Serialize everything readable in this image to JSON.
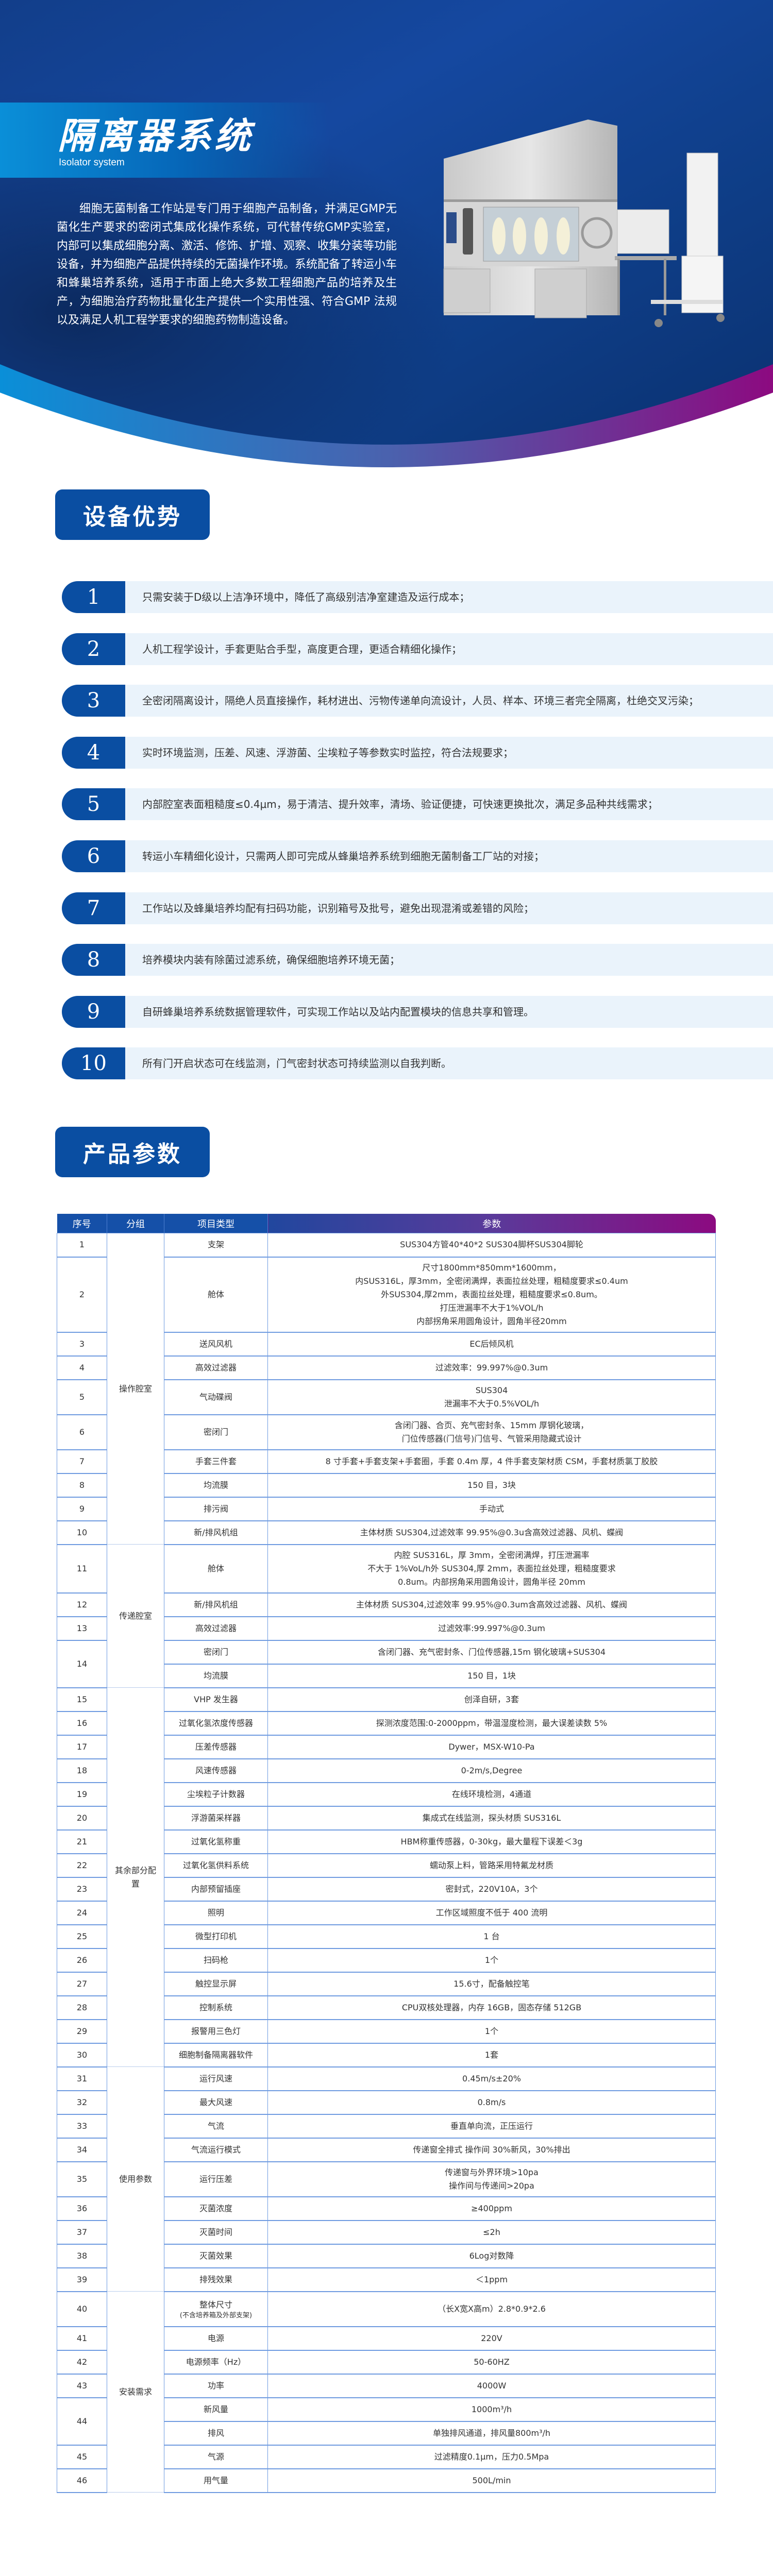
{
  "banner": {
    "title": "隔离器系统",
    "subtitle": "Isolator system",
    "intro": "细胞无菌制备工作站是专门用于细胞产品制备，并满足GMP无菌化生产要求的密闭式集成化操作系统，可代替传统GMP实验室，内部可以集成细胞分离、激活、修饰、扩增、观察、收集分装等功能设备，并为细胞产品提供持续的无菌操作环境。系统配备了转运小车和蜂巢培养系统，适用于市面上绝大多数工程细胞产品的培养及生产，为细胞治疗药物批量化生产提供一个实用性强、符合GMP 法规以及满足人机工程学要求的细胞药物制造设备。",
    "colors": {
      "band_start": "#0a8fd8",
      "band_end": "#8c0a80",
      "background": "#1547a0"
    }
  },
  "advantages": {
    "title": "设备优势",
    "items": [
      {
        "no": "1",
        "text": "只需安装于D级以上洁净环境中，降低了高级别洁净室建造及运行成本；"
      },
      {
        "no": "2",
        "text": "人机工程学设计，手套更贴合手型，高度更合理，更适合精细化操作；"
      },
      {
        "no": "3",
        "text": "全密闭隔离设计，隔绝人员直接操作，耗材进出、污物传递单向流设计，人员、样本、环境三者完全隔离，杜绝交叉污染；"
      },
      {
        "no": "4",
        "text": "实时环境监测，压差、风速、浮游菌、尘埃粒子等参数实时监控，符合法规要求；"
      },
      {
        "no": "5",
        "text": "内部腔室表面粗糙度≤0.4μm，易于清洁、提升效率，清场、验证便捷，可快速更换批次，满足多品种共线需求；"
      },
      {
        "no": "6",
        "text": "转运小车精细化设计，只需两人即可完成从蜂巢培养系统到细胞无菌制备工厂站的对接；"
      },
      {
        "no": "7",
        "text": "工作站以及蜂巢培养均配有扫码功能，识别箱号及批号，避免出现混淆或差错的风险；"
      },
      {
        "no": "8",
        "text": "培养模块内装有除菌过滤系统，确保细胞培养环境无菌；"
      },
      {
        "no": "9",
        "text": "自研蜂巢培养系统数据管理软件，可实现工作站以及站内配置模块的信息共享和管理。"
      },
      {
        "no": "10",
        "text": "所有门开启状态可在线监测，门气密封状态可持续监测以自我判断。"
      }
    ]
  },
  "params": {
    "title": "产品参数",
    "headers": [
      "序号",
      "分组",
      "项目类型",
      "参数"
    ],
    "groups": [
      {
        "name": "操作腔室",
        "rows": [
          {
            "no": "1",
            "items": [
              {
                "type": [
                  "支架"
                ],
                "value": [
                  "SUS304方管40*40*2  SUS304脚杯SUS304脚轮"
                ]
              }
            ]
          },
          {
            "no": "2",
            "items": [
              {
                "type": [
                  "舱体"
                ],
                "value": [
                  "尺寸1800mm*850mm*1600mm，",
                  "内SUS316L，厚3mm，全密闭满焊，表面拉丝处理，粗糙度要求≤0.4um",
                  "外SUS304,厚2mm，表面拉丝处理，粗糙度要求≤0.8um。",
                  "打压泄漏率不大于1%VOL/h",
                  "内部拐角采用圆角设计，圆角半径20mm"
                ]
              }
            ]
          },
          {
            "no": "3",
            "items": [
              {
                "type": [
                  "送风风机"
                ],
                "value": [
                  "EC后倾风机"
                ]
              }
            ]
          },
          {
            "no": "4",
            "items": [
              {
                "type": [
                  "高效过滤器"
                ],
                "value": [
                  "过滤效率：99.997%@0.3um"
                ]
              }
            ]
          },
          {
            "no": "5",
            "items": [
              {
                "type": [
                  "气动碟阀"
                ],
                "value": [
                  "SUS304",
                  "泄漏率不大于0.5%VOL/h"
                ]
              }
            ]
          },
          {
            "no": "6",
            "items": [
              {
                "type": [
                  "密闭门"
                ],
                "value": [
                  "含闭门器、合页、充气密封条、15mm 厚钢化玻璃，",
                  "门位传感器(门信号)门信号、气管采用隐藏式设计"
                ]
              }
            ]
          },
          {
            "no": "7",
            "items": [
              {
                "type": [
                  "手套三件套"
                ],
                "value": [
                  "8 寸手套+手套支架+手套圈，手套 0.4m 厚，4 件手套支架材质 CSM，手套材质氯丁胶胶"
                ]
              }
            ]
          },
          {
            "no": "8",
            "items": [
              {
                "type": [
                  "均流膜"
                ],
                "value": [
                  "150 目，3块"
                ]
              }
            ]
          },
          {
            "no": "9",
            "items": [
              {
                "type": [
                  "排污阀"
                ],
                "value": [
                  "手动式"
                ]
              }
            ]
          },
          {
            "no": "10",
            "items": [
              {
                "type": [
                  "新/排风机组"
                ],
                "value": [
                  "主体材质 SUS304,过滤效率 99.95%@0.3u含高效过滤器、风机、蝶阀"
                ]
              }
            ]
          }
        ]
      },
      {
        "name": "传递腔室",
        "rows": [
          {
            "no": "11",
            "items": [
              {
                "type": [
                  "舱体"
                ],
                "value": [
                  "内腔 SUS316L，厚 3mm，全密闭满焊，打压泄漏率",
                  "不大于 1%VoL/h外 SUS304,厚 2mm，表面拉丝处理，粗糙度要求",
                  "0.8um。内部拐角采用圆角设计，圆角半径 20mm"
                ]
              }
            ]
          },
          {
            "no": "12",
            "items": [
              {
                "type": [
                  "新/排风机组"
                ],
                "value": [
                  "主体材质 SUS304,过滤效率 99.95%@0.3um含高效过滤器、风机、蝶阀"
                ]
              }
            ]
          },
          {
            "no": "13",
            "items": [
              {
                "type": [
                  "高效过滤器"
                ],
                "value": [
                  "过滤效率:99.997%@0.3um"
                ]
              }
            ]
          },
          {
            "no": "14",
            "items": [
              {
                "type": [
                  "密闭门"
                ],
                "value": [
                  "含闭门器、充气密封条、门位传感器,15m 钢化玻璃+SUS304"
                ]
              },
              {
                "type": [
                  "均流膜"
                ],
                "value": [
                  "150 目，1块"
                ]
              }
            ]
          }
        ]
      },
      {
        "name": "其余部分配置",
        "rows": [
          {
            "no": "15",
            "items": [
              {
                "type": [
                  "VHP 发生器"
                ],
                "value": [
                  "创泽自研，3套"
                ]
              }
            ]
          },
          {
            "no": "16",
            "items": [
              {
                "type": [
                  "过氧化氢浓度传感器"
                ],
                "value": [
                  "探测浓度范围:0-2000ppm，带温湿度检测，最大误差读数 5%"
                ]
              }
            ]
          },
          {
            "no": "17",
            "items": [
              {
                "type": [
                  "压差传感器"
                ],
                "value": [
                  "Dywer，MSX-W10-Pa"
                ]
              }
            ]
          },
          {
            "no": "18",
            "items": [
              {
                "type": [
                  "风速传感器"
                ],
                "value": [
                  "0-2m/s,Degree"
                ]
              }
            ]
          },
          {
            "no": "19",
            "items": [
              {
                "type": [
                  "尘埃粒子计数器"
                ],
                "value": [
                  "在线环境检测，4通道"
                ]
              }
            ]
          },
          {
            "no": "20",
            "items": [
              {
                "type": [
                  "浮游菌采样器"
                ],
                "value": [
                  "集成式在线监测，探头材质 SUS316L"
                ]
              }
            ]
          },
          {
            "no": "21",
            "items": [
              {
                "type": [
                  "过氧化氢称重"
                ],
                "value": [
                  "HBM称重传感器，0-30kg，最大量程下误差＜3g"
                ]
              }
            ]
          },
          {
            "no": "22",
            "items": [
              {
                "type": [
                  "过氧化氢供料系统"
                ],
                "value": [
                  "蠕动泵上料，管路采用特氟龙材质"
                ]
              }
            ]
          },
          {
            "no": "23",
            "items": [
              {
                "type": [
                  "内部预留插座"
                ],
                "value": [
                  "密封式，220V10A，3个"
                ]
              }
            ]
          },
          {
            "no": "24",
            "items": [
              {
                "type": [
                  "照明"
                ],
                "value": [
                  "工作区域照度不低于 400 流明"
                ]
              }
            ]
          },
          {
            "no": "25",
            "items": [
              {
                "type": [
                  "微型打印机"
                ],
                "value": [
                  "1 台"
                ]
              }
            ]
          },
          {
            "no": "26",
            "items": [
              {
                "type": [
                  "扫码枪"
                ],
                "value": [
                  "1个"
                ]
              }
            ]
          },
          {
            "no": "27",
            "items": [
              {
                "type": [
                  "触控显示屏"
                ],
                "value": [
                  "15.6寸，配备触控笔"
                ]
              }
            ]
          },
          {
            "no": "28",
            "items": [
              {
                "type": [
                  "控制系统"
                ],
                "value": [
                  "CPU双核处理器，内存 16GB，固态存储 512GB"
                ]
              }
            ]
          },
          {
            "no": "29",
            "items": [
              {
                "type": [
                  "报警用三色灯"
                ],
                "value": [
                  "1个"
                ]
              }
            ]
          },
          {
            "no": "30",
            "items": [
              {
                "type": [
                  "细胞制备隔离器软件"
                ],
                "value": [
                  "1套"
                ]
              }
            ]
          }
        ]
      },
      {
        "name": "使用参数",
        "rows": [
          {
            "no": "31",
            "items": [
              {
                "type": [
                  "运行风速"
                ],
                "value": [
                  "0.45m/s±20%"
                ]
              }
            ]
          },
          {
            "no": "32",
            "items": [
              {
                "type": [
                  "最大风速"
                ],
                "value": [
                  "0.8m/s"
                ]
              }
            ]
          },
          {
            "no": "33",
            "items": [
              {
                "type": [
                  "气流"
                ],
                "value": [
                  "垂直单向流，正压运行"
                ]
              }
            ]
          },
          {
            "no": "34",
            "items": [
              {
                "type": [
                  "气流运行模式"
                ],
                "value": [
                  "传递窗全排式  操作间 30%新风，30%排出"
                ]
              }
            ]
          },
          {
            "no": "35",
            "items": [
              {
                "type": [
                  "运行压差"
                ],
                "value": [
                  "传递窗与外界环境>10pa",
                  "操作间与传递间>20pa"
                ]
              }
            ]
          },
          {
            "no": "36",
            "items": [
              {
                "type": [
                  "灭菌浓度"
                ],
                "value": [
                  "≥400ppm"
                ]
              }
            ]
          },
          {
            "no": "37",
            "items": [
              {
                "type": [
                  "灭菌时间"
                ],
                "value": [
                  "≤2h"
                ]
              }
            ]
          },
          {
            "no": "38",
            "items": [
              {
                "type": [
                  "灭菌效果"
                ],
                "value": [
                  "6Log对数降"
                ]
              }
            ]
          },
          {
            "no": "39",
            "items": [
              {
                "type": [
                  "排残效果"
                ],
                "value": [
                  "＜1ppm"
                ]
              }
            ]
          }
        ]
      },
      {
        "name": "安装需求",
        "rows": [
          {
            "no": "40",
            "items": [
              {
                "type": [
                  "整体尺寸"
                ],
                "note": "(不含培养箱及外部支架)",
                "value": [
                  "（长X宽X高m）2.8*0.9*2.6"
                ]
              }
            ]
          },
          {
            "no": "41",
            "items": [
              {
                "type": [
                  "电源"
                ],
                "value": [
                  "220V"
                ]
              }
            ]
          },
          {
            "no": "42",
            "items": [
              {
                "type": [
                  "电源频率（Hz）"
                ],
                "value": [
                  "50-60HZ"
                ]
              }
            ]
          },
          {
            "no": "43",
            "items": [
              {
                "type": [
                  "功率"
                ],
                "value": [
                  "4000W"
                ]
              }
            ]
          },
          {
            "no": "44",
            "items": [
              {
                "type": [
                  "新风量"
                ],
                "value": [
                  "1000m³/h"
                ]
              },
              {
                "type": [
                  "排风"
                ],
                "value": [
                  "单独排风通道，排风量800m³/h"
                ]
              }
            ]
          },
          {
            "no": "45",
            "items": [
              {
                "type": [
                  "气源"
                ],
                "value": [
                  "过滤精度0.1μm，压力0.5Mpa"
                ]
              }
            ]
          },
          {
            "no": "46",
            "items": [
              {
                "type": [
                  "用气量"
                ],
                "value": [
                  "500L/min"
                ]
              }
            ]
          }
        ]
      }
    ]
  }
}
